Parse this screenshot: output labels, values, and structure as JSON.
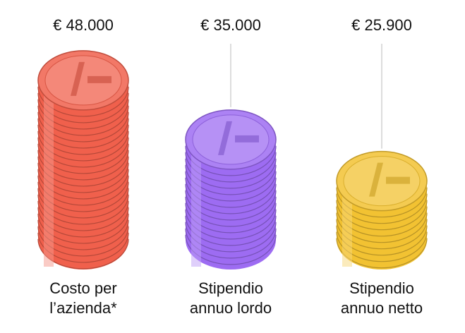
{
  "chart_data": {
    "type": "coin-stack",
    "categories": [
      [
        "Costo per",
        "l’azienda*"
      ],
      [
        "Stipendio",
        "annuo lordo"
      ],
      [
        "Stipendio",
        "annuo netto"
      ]
    ],
    "values": [
      48000,
      35000,
      25900
    ],
    "value_labels": [
      "€ 48.000",
      "€ 35.000",
      "€ 25.900"
    ],
    "colors": [
      "#f0604c",
      "#9d6cf2",
      "#f2c232"
    ]
  }
}
